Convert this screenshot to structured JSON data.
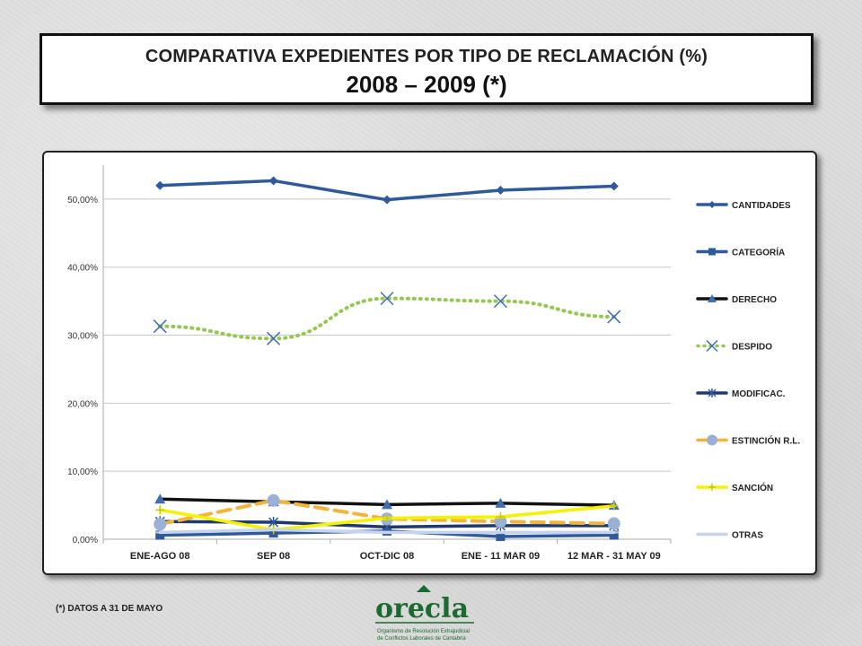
{
  "header": {
    "title_line1": "COMPARATIVA EXPEDIENTES POR TIPO DE RECLAMACIÓN (%)",
    "title_line2": "2008 – 2009 (*)"
  },
  "footnote": "(*) DATOS A  31 DE MAYO",
  "logo": {
    "name": "orecla",
    "caption_line1": "Organismo de Resolución Extrajudicial",
    "caption_line2": "de Conflictos Laborales de Cantabria"
  },
  "chart_data": {
    "type": "line",
    "categories": [
      "ENE-AGO 08",
      "SEP 08",
      "OCT-DIC 08",
      "ENE - 11 MAR 09",
      "12 MAR - 31 MAY 09"
    ],
    "ylim": [
      0,
      55
    ],
    "yticks": [
      0,
      10,
      20,
      30,
      40,
      50
    ],
    "ytick_labels": [
      "0,00%",
      "10,00%",
      "20,00%",
      "30,00%",
      "40,00%",
      "50,00%"
    ],
    "grid": true,
    "legend_position": "right",
    "series": [
      {
        "name": "CANTIDADES",
        "values": [
          52.0,
          52.7,
          49.9,
          51.3,
          51.9
        ],
        "color": "#2f5a9a",
        "dash": "solid",
        "marker": "diamond"
      },
      {
        "name": "CATEGORÍA",
        "values": [
          0.6,
          0.9,
          1.2,
          0.4,
          0.6
        ],
        "color": "#2f5a9a",
        "dash": "solid",
        "marker": "square"
      },
      {
        "name": "DERECHO",
        "values": [
          5.9,
          5.5,
          5.1,
          5.3,
          5.0
        ],
        "color": "#111111",
        "dash": "solid",
        "marker": "triangle"
      },
      {
        "name": "DESPIDO",
        "values": [
          31.3,
          29.5,
          35.4,
          35.0,
          32.7
        ],
        "color": "#92c84e",
        "dash": "dot",
        "marker": "x"
      },
      {
        "name": "MODIFICAC.",
        "values": [
          2.6,
          2.5,
          1.8,
          2.0,
          2.0
        ],
        "color": "#1f3870",
        "dash": "solid",
        "marker": "star"
      },
      {
        "name": "ESTINCIÓN R.L.",
        "values": [
          2.2,
          5.7,
          3.0,
          2.6,
          2.3
        ],
        "color": "#f2b43a",
        "dash": "dash",
        "marker": "circle"
      },
      {
        "name": "SANCIÓN",
        "values": [
          4.3,
          1.4,
          3.1,
          3.3,
          4.9
        ],
        "color": "#f5f200",
        "dash": "solid",
        "marker": "plus"
      },
      {
        "name": "OTRAS",
        "values": [
          1.0,
          1.4,
          1.0,
          1.0,
          1.0
        ],
        "color": "#c5d3ee",
        "dash": "solid",
        "marker": "dash"
      }
    ]
  }
}
